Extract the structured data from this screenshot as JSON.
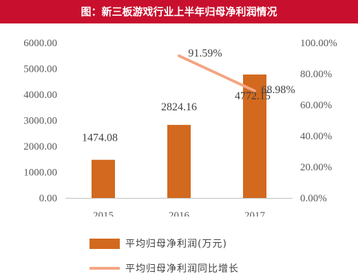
{
  "header": {
    "title": "图：新三板游戏行业上半年归母净利润情况"
  },
  "colors": {
    "header_bg": "#c8102e",
    "bar": "#d2691e",
    "line": "#f4a582"
  },
  "chart_data": {
    "type": "bar",
    "categories": [
      "2015",
      "2016",
      "2017"
    ],
    "series": [
      {
        "name": "平均归母净利润(万元)",
        "type": "bar",
        "axis": "left",
        "values": [
          1474.08,
          2824.16,
          4772.15
        ],
        "labels": [
          "1474.08",
          "2824.16",
          "4772.15"
        ]
      },
      {
        "name": "平均归母净利润同比增长",
        "type": "line",
        "axis": "right",
        "x": [
          "2016",
          "2017"
        ],
        "values": [
          91.59,
          68.98
        ],
        "labels": [
          "91.59%",
          "68.98%"
        ]
      }
    ],
    "y_left": {
      "ylim": [
        0,
        6000
      ],
      "ticks": [
        "0.00",
        "1000.00",
        "2000.00",
        "3000.00",
        "4000.00",
        "5000.00",
        "6000.00"
      ]
    },
    "y_right": {
      "ylim": [
        0,
        100
      ],
      "ticks": [
        "0.00%",
        "20.00%",
        "40.00%",
        "60.00%",
        "80.00%",
        "100.00%"
      ]
    },
    "grid": false,
    "legend": "bottom"
  }
}
